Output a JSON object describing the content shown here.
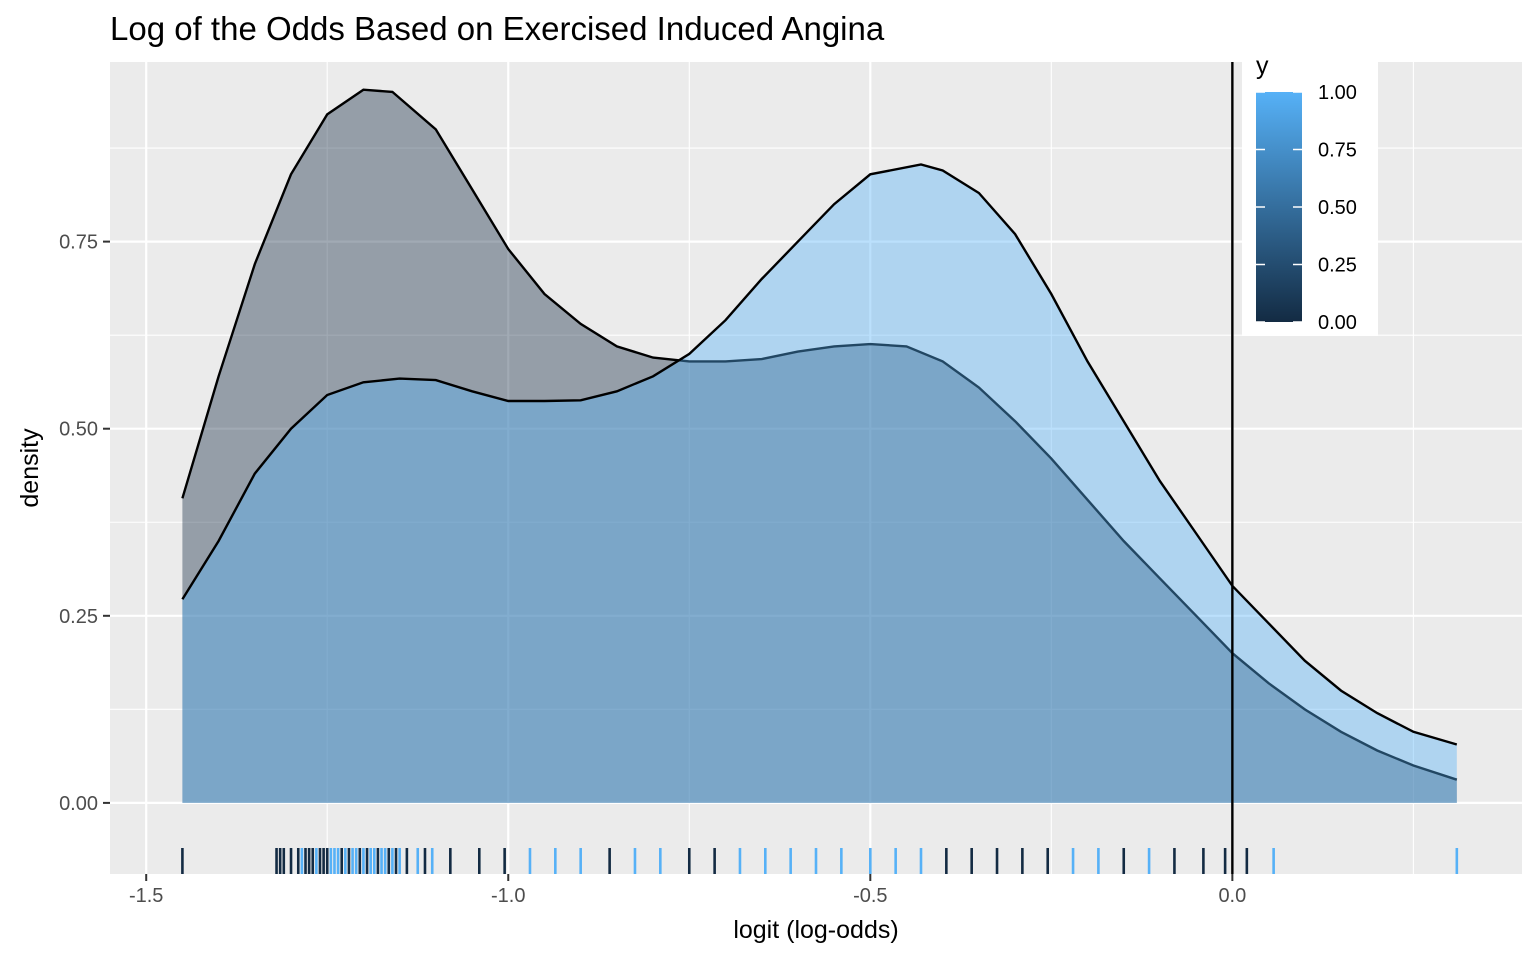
{
  "chart_data": {
    "type": "area",
    "title": "Log of the Odds Based on Exercised Induced Angina",
    "xlabel": "logit (log-odds)",
    "ylabel": "density",
    "xlim": [
      -1.55,
      0.4
    ],
    "ylim": [
      -0.095,
      0.99
    ],
    "x_ticks": [
      -1.5,
      -1.0,
      -0.5,
      0.0
    ],
    "x_tick_labels": [
      "-1.5",
      "-1.0",
      "-0.5",
      "0.0"
    ],
    "y_ticks": [
      0.0,
      0.25,
      0.5,
      0.75
    ],
    "y_tick_labels": [
      "0.00",
      "0.25",
      "0.50",
      "0.75"
    ],
    "grid": true,
    "vline_x": 0.0,
    "series": [
      {
        "y": 0,
        "fill": "#132B43",
        "x": [
          -1.45,
          -1.4,
          -1.35,
          -1.3,
          -1.25,
          -1.2,
          -1.16,
          -1.1,
          -1.05,
          -1.0,
          -0.95,
          -0.9,
          -0.85,
          -0.8,
          -0.75,
          -0.7,
          -0.65,
          -0.6,
          -0.55,
          -0.5,
          -0.45,
          -0.4,
          -0.35,
          -0.3,
          -0.25,
          -0.2,
          -0.15,
          -0.1,
          -0.05,
          0.0,
          0.05,
          0.1,
          0.15,
          0.2,
          0.25,
          0.31
        ],
        "values": [
          0.407,
          0.57,
          0.72,
          0.84,
          0.92,
          0.953,
          0.95,
          0.9,
          0.82,
          0.74,
          0.68,
          0.64,
          0.61,
          0.595,
          0.59,
          0.59,
          0.593,
          0.603,
          0.61,
          0.613,
          0.61,
          0.59,
          0.555,
          0.51,
          0.46,
          0.405,
          0.35,
          0.3,
          0.25,
          0.2,
          0.16,
          0.125,
          0.095,
          0.07,
          0.05,
          0.031
        ]
      },
      {
        "y": 1,
        "fill": "#56B1F7",
        "x": [
          -1.45,
          -1.4,
          -1.35,
          -1.3,
          -1.25,
          -1.2,
          -1.15,
          -1.1,
          -1.05,
          -1.0,
          -0.95,
          -0.9,
          -0.85,
          -0.8,
          -0.75,
          -0.7,
          -0.65,
          -0.6,
          -0.55,
          -0.5,
          -0.43,
          -0.4,
          -0.35,
          -0.3,
          -0.25,
          -0.2,
          -0.15,
          -0.1,
          -0.05,
          0.0,
          0.05,
          0.1,
          0.15,
          0.2,
          0.25,
          0.31
        ],
        "values": [
          0.272,
          0.35,
          0.44,
          0.5,
          0.545,
          0.562,
          0.567,
          0.565,
          0.55,
          0.537,
          0.537,
          0.538,
          0.55,
          0.57,
          0.6,
          0.645,
          0.7,
          0.75,
          0.8,
          0.84,
          0.853,
          0.845,
          0.815,
          0.76,
          0.68,
          0.59,
          0.51,
          0.43,
          0.36,
          0.29,
          0.24,
          0.19,
          0.15,
          0.12,
          0.095,
          0.078
        ]
      }
    ],
    "rug": [
      {
        "x": -1.45,
        "y": 0
      },
      {
        "x": -1.32,
        "y": 0
      },
      {
        "x": -1.315,
        "y": 0
      },
      {
        "x": -1.31,
        "y": 0
      },
      {
        "x": -1.3,
        "y": 0
      },
      {
        "x": -1.29,
        "y": 0
      },
      {
        "x": -1.285,
        "y": 1
      },
      {
        "x": -1.28,
        "y": 0
      },
      {
        "x": -1.275,
        "y": 0
      },
      {
        "x": -1.27,
        "y": 0
      },
      {
        "x": -1.265,
        "y": 1
      },
      {
        "x": -1.26,
        "y": 0
      },
      {
        "x": -1.255,
        "y": 0
      },
      {
        "x": -1.25,
        "y": 0
      },
      {
        "x": -1.245,
        "y": 1
      },
      {
        "x": -1.24,
        "y": 1
      },
      {
        "x": -1.235,
        "y": 1
      },
      {
        "x": -1.23,
        "y": 0
      },
      {
        "x": -1.225,
        "y": 1
      },
      {
        "x": -1.22,
        "y": 0
      },
      {
        "x": -1.215,
        "y": 1
      },
      {
        "x": -1.21,
        "y": 1
      },
      {
        "x": -1.205,
        "y": 0
      },
      {
        "x": -1.2,
        "y": 1
      },
      {
        "x": -1.195,
        "y": 0
      },
      {
        "x": -1.19,
        "y": 1
      },
      {
        "x": -1.185,
        "y": 1
      },
      {
        "x": -1.18,
        "y": 0
      },
      {
        "x": -1.175,
        "y": 1
      },
      {
        "x": -1.17,
        "y": 1
      },
      {
        "x": -1.165,
        "y": 0
      },
      {
        "x": -1.16,
        "y": 1
      },
      {
        "x": -1.155,
        "y": 0
      },
      {
        "x": -1.15,
        "y": 1
      },
      {
        "x": -1.14,
        "y": 0
      },
      {
        "x": -1.125,
        "y": 1
      },
      {
        "x": -1.115,
        "y": 0
      },
      {
        "x": -1.105,
        "y": 1
      },
      {
        "x": -1.08,
        "y": 0
      },
      {
        "x": -1.04,
        "y": 0
      },
      {
        "x": -1.005,
        "y": 0
      },
      {
        "x": -0.97,
        "y": 1
      },
      {
        "x": -0.935,
        "y": 1
      },
      {
        "x": -0.9,
        "y": 1
      },
      {
        "x": -0.86,
        "y": 0
      },
      {
        "x": -0.825,
        "y": 1
      },
      {
        "x": -0.79,
        "y": 1
      },
      {
        "x": -0.75,
        "y": 0
      },
      {
        "x": -0.715,
        "y": 0
      },
      {
        "x": -0.68,
        "y": 1
      },
      {
        "x": -0.645,
        "y": 1
      },
      {
        "x": -0.61,
        "y": 1
      },
      {
        "x": -0.575,
        "y": 1
      },
      {
        "x": -0.54,
        "y": 1
      },
      {
        "x": -0.5,
        "y": 1
      },
      {
        "x": -0.465,
        "y": 1
      },
      {
        "x": -0.43,
        "y": 1
      },
      {
        "x": -0.395,
        "y": 0
      },
      {
        "x": -0.36,
        "y": 0
      },
      {
        "x": -0.325,
        "y": 0
      },
      {
        "x": -0.29,
        "y": 0
      },
      {
        "x": -0.255,
        "y": 0
      },
      {
        "x": -0.22,
        "y": 1
      },
      {
        "x": -0.185,
        "y": 1
      },
      {
        "x": -0.15,
        "y": 0
      },
      {
        "x": -0.115,
        "y": 1
      },
      {
        "x": -0.08,
        "y": 0
      },
      {
        "x": -0.04,
        "y": 0
      },
      {
        "x": -0.01,
        "y": 0
      },
      {
        "x": 0.02,
        "y": 0
      },
      {
        "x": 0.057,
        "y": 1
      },
      {
        "x": 0.31,
        "y": 1
      }
    ],
    "legend": {
      "title": "y",
      "position": "top-right",
      "type": "colorbar",
      "low_color": "#132B43",
      "high_color": "#56B1F7",
      "breaks": [
        1.0,
        0.75,
        0.5,
        0.25,
        0.0
      ],
      "labels": [
        "1.00",
        "0.75",
        "0.50",
        "0.25",
        "0.00"
      ]
    }
  }
}
